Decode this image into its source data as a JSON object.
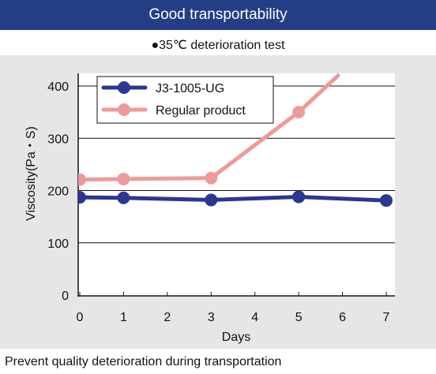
{
  "header": {
    "title": "Good transportability"
  },
  "subtitle": "●35℃ deterioration test",
  "caption": "Prevent quality deterioration during transportation",
  "colors": {
    "header_bg": "#243e86",
    "plot_bg": "#e6e6e6",
    "series_1": "#2b3790",
    "series_2": "#ee9a9a"
  },
  "chart_data": {
    "type": "line",
    "title": "",
    "xlabel": "Days",
    "ylabel": "Viscosity(Pa・S)",
    "xlim": [
      0,
      7
    ],
    "ylim": [
      0,
      400
    ],
    "x_ticks": [
      0,
      1,
      2,
      3,
      4,
      5,
      6,
      7
    ],
    "y_ticks": [
      0,
      100,
      200,
      300,
      400
    ],
    "grid": "horizontal",
    "legend": "top-left",
    "series": [
      {
        "name": "J3-1005-UG",
        "color": "#2b3790",
        "x": [
          0,
          1,
          3,
          5,
          7
        ],
        "y": [
          187,
          186,
          182,
          188,
          181
        ],
        "markers": true
      },
      {
        "name": "Regular product",
        "color": "#ee9a9a",
        "x": [
          0,
          1,
          3,
          5,
          5.9
        ],
        "y": [
          221,
          222,
          224,
          350,
          420
        ],
        "markers": [
          true,
          true,
          true,
          true,
          false
        ]
      }
    ]
  }
}
